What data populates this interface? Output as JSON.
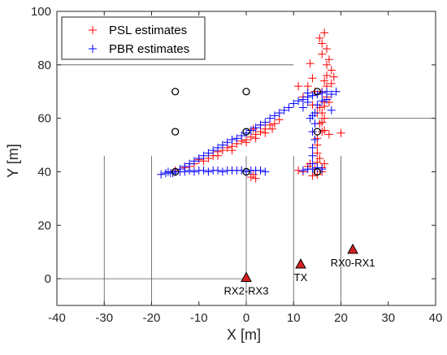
{
  "chart_data": {
    "type": "scatter",
    "xlabel": "X [m]",
    "ylabel": "Y [m]",
    "xlim": [
      -40,
      40
    ],
    "ylim": [
      -10,
      100
    ],
    "xticks": [
      "-40",
      "-30",
      "-20",
      "-10",
      "0",
      "10",
      "20",
      "30",
      "40"
    ],
    "yticks": [
      "0",
      "20",
      "40",
      "60",
      "80",
      "100"
    ],
    "legend_position": "top-left",
    "colors": {
      "PSL": "#ff0000",
      "PBR": "#0000ff",
      "device": "#d62020"
    },
    "series": [
      {
        "name": "PSL estimates",
        "marker": "+",
        "color": "#ff0000",
        "points": [
          [
            -15,
            40.5
          ],
          [
            -13,
            41.5
          ],
          [
            -11,
            43
          ],
          [
            -9,
            44
          ],
          [
            -8,
            45
          ],
          [
            -7,
            46
          ],
          [
            -6,
            47.5
          ],
          [
            -5,
            48
          ],
          [
            -4,
            49
          ],
          [
            -3,
            49.5
          ],
          [
            -2,
            50.5
          ],
          [
            -1,
            51.5
          ],
          [
            0,
            52
          ],
          [
            1,
            53
          ],
          [
            2,
            54
          ],
          [
            3,
            55
          ],
          [
            4,
            56
          ],
          [
            5,
            57.5
          ],
          [
            6,
            58
          ],
          [
            7,
            59.5
          ],
          [
            -12,
            42
          ],
          [
            -10,
            44.5
          ],
          [
            -6,
            46
          ],
          [
            -3,
            48
          ],
          [
            0,
            51
          ],
          [
            2,
            52.5
          ],
          [
            4,
            54.5
          ],
          [
            5.5,
            56
          ],
          [
            3,
            57.5
          ],
          [
            1.5,
            56
          ],
          [
            1,
            38
          ],
          [
            2,
            37.5
          ],
          [
            1.5,
            39
          ],
          [
            11,
            40.5
          ],
          [
            12,
            40
          ],
          [
            13,
            42
          ],
          [
            13.5,
            43
          ],
          [
            14,
            38.5
          ],
          [
            15,
            39
          ],
          [
            16,
            40
          ],
          [
            16.5,
            43
          ],
          [
            15.5,
            45
          ],
          [
            15,
            47
          ],
          [
            15,
            50
          ],
          [
            15,
            52.5
          ],
          [
            16,
            55
          ],
          [
            15.5,
            58
          ],
          [
            16.5,
            60
          ],
          [
            16,
            62
          ],
          [
            15.5,
            64
          ],
          [
            16.5,
            66
          ],
          [
            17,
            68
          ],
          [
            16,
            70
          ],
          [
            17,
            72
          ],
          [
            16.5,
            74
          ],
          [
            17,
            76
          ],
          [
            18,
            78
          ],
          [
            17,
            80
          ],
          [
            17.5,
            82
          ],
          [
            16,
            84
          ],
          [
            17,
            86
          ],
          [
            16,
            88
          ],
          [
            15.5,
            90
          ],
          [
            16.5,
            92
          ],
          [
            13.5,
            80.5
          ],
          [
            13,
            72
          ],
          [
            14,
            75
          ],
          [
            14.5,
            70
          ],
          [
            18,
            73
          ],
          [
            18.5,
            75.5
          ],
          [
            17.5,
            66
          ],
          [
            16.5,
            64.5
          ],
          [
            17.5,
            54
          ],
          [
            20,
            54.5
          ],
          [
            16.5,
            55.5
          ],
          [
            16,
            58.5
          ],
          [
            15,
            62
          ],
          [
            11,
            72
          ],
          [
            12,
            68
          ],
          [
            14,
            65
          ],
          [
            15,
            43.5
          ],
          [
            14.5,
            41
          ],
          [
            16,
            41.5
          ]
        ]
      },
      {
        "name": "PBR estimates",
        "marker": "+",
        "color": "#0000ff",
        "points": [
          [
            -18,
            39
          ],
          [
            -17,
            39.5
          ],
          [
            -16,
            39.5
          ],
          [
            -15,
            40
          ],
          [
            -14,
            40
          ],
          [
            -13,
            40
          ],
          [
            -12,
            40.5
          ],
          [
            -11,
            40
          ],
          [
            -10,
            40.5
          ],
          [
            -9,
            40.5
          ],
          [
            -8,
            40
          ],
          [
            -7,
            40.5
          ],
          [
            -6,
            40.5
          ],
          [
            -5,
            40
          ],
          [
            -4,
            40.5
          ],
          [
            -3,
            40.5
          ],
          [
            -2,
            40.5
          ],
          [
            -1,
            40.5
          ],
          [
            0,
            40
          ],
          [
            1,
            40.5
          ],
          [
            2,
            40.5
          ],
          [
            3,
            40.5
          ],
          [
            4,
            40
          ],
          [
            12,
            40.5
          ],
          [
            13,
            41
          ],
          [
            14,
            41
          ],
          [
            15,
            41.5
          ],
          [
            16,
            41
          ],
          [
            -16.5,
            40
          ],
          [
            -15.5,
            39.5
          ],
          [
            -14,
            41
          ],
          [
            -13,
            42
          ],
          [
            -12,
            43
          ],
          [
            -11,
            44
          ],
          [
            -10,
            45
          ],
          [
            -9,
            46
          ],
          [
            -8,
            47
          ],
          [
            -7,
            48
          ],
          [
            -6,
            49
          ],
          [
            -5,
            50
          ],
          [
            -4,
            51
          ],
          [
            -3,
            52
          ],
          [
            -2,
            52.5
          ],
          [
            -1,
            53.5
          ],
          [
            0,
            54.5
          ],
          [
            1,
            55.5
          ],
          [
            2,
            56.5
          ],
          [
            3,
            57.5
          ],
          [
            4,
            58.5
          ],
          [
            5,
            60
          ],
          [
            6,
            61
          ],
          [
            7,
            62
          ],
          [
            8,
            63
          ],
          [
            9,
            64
          ],
          [
            10,
            65.5
          ],
          [
            11,
            66.5
          ],
          [
            12,
            67
          ],
          [
            13,
            68
          ],
          [
            14,
            68.5
          ],
          [
            15,
            69
          ],
          [
            16,
            69.5
          ],
          [
            17,
            70
          ],
          [
            18,
            69
          ],
          [
            19,
            70
          ],
          [
            13,
            66
          ],
          [
            12,
            64
          ],
          [
            15,
            65
          ],
          [
            17,
            67
          ],
          [
            18,
            63
          ],
          [
            14,
            61
          ],
          [
            14.5,
            58
          ],
          [
            14,
            55
          ],
          [
            14.5,
            52
          ],
          [
            14,
            49
          ],
          [
            14,
            46
          ],
          [
            14,
            43
          ],
          [
            13.5,
            60
          ],
          [
            14.5,
            62
          ],
          [
            16,
            66.5
          ],
          [
            13,
            69.5
          ]
        ]
      }
    ],
    "grid_points": [
      [
        -15,
        70
      ],
      [
        0,
        70
      ],
      [
        15,
        70
      ],
      [
        -15,
        55
      ],
      [
        0,
        55
      ],
      [
        15,
        55
      ],
      [
        -15,
        40
      ],
      [
        0,
        40
      ],
      [
        15,
        40
      ]
    ],
    "devices": [
      {
        "label": "RX2-RX3",
        "x": 0,
        "y": 0.5
      },
      {
        "label": "TX",
        "x": 11.5,
        "y": 5.5
      },
      {
        "label": "RX0-RX1",
        "x": 22.5,
        "y": 11
      }
    ],
    "reference_lines": {
      "vertical": [
        {
          "x": -30,
          "y_from": -10,
          "y_to": 46
        },
        {
          "x": -20,
          "y_from": -10,
          "y_to": 46
        },
        {
          "x": 0,
          "y_from": -10,
          "y_to": 46
        },
        {
          "x": 10,
          "y_from": -10,
          "y_to": 46
        },
        {
          "x": 20,
          "y_from": -10,
          "y_to": 46
        }
      ],
      "horizontal": [
        {
          "y": 80,
          "x_from": -40,
          "x_to": 10
        },
        {
          "y": 60,
          "x_from": 15,
          "x_to": 40
        },
        {
          "y": 0,
          "x_from": -40,
          "x_to": 0
        }
      ]
    }
  }
}
